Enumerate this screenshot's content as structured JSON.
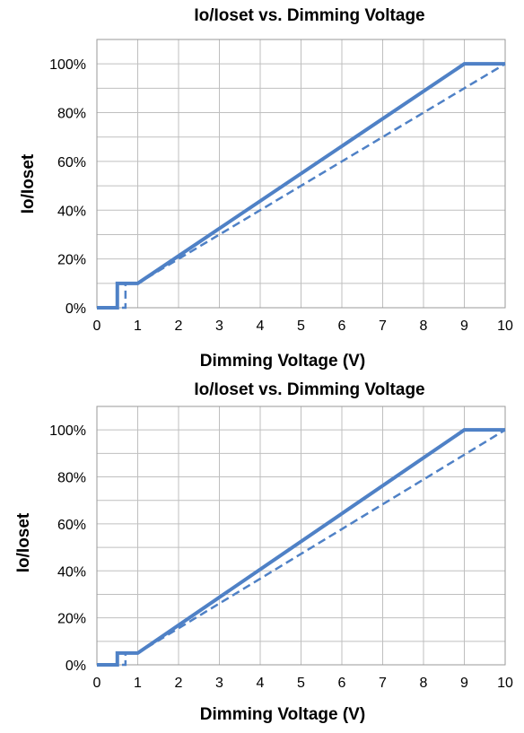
{
  "chart_data": [
    {
      "type": "line",
      "title": "Io/Ioset vs. Dimming Voltage",
      "xlabel": "Dimming Voltage (V)",
      "ylabel": "Io/Ioset",
      "xlim": [
        0,
        10
      ],
      "ylim": [
        0,
        110
      ],
      "x_ticks": [
        "0",
        "1",
        "2",
        "3",
        "4",
        "5",
        "6",
        "7",
        "8",
        "9",
        "10"
      ],
      "y_ticks": [
        "0%",
        "20%",
        "40%",
        "60%",
        "80%",
        "100%"
      ],
      "y_tick_values": [
        0,
        20,
        40,
        60,
        80,
        100
      ],
      "grid": true,
      "series": [
        {
          "style": "solid",
          "color": "#4f81c6",
          "x": [
            0,
            0.5,
            0.5,
            1.0,
            9.0,
            10.0
          ],
          "y": [
            0,
            0,
            10,
            10,
            100,
            100
          ]
        },
        {
          "style": "dashed",
          "color": "#4f81c6",
          "x": [
            0,
            0.7,
            0.7,
            1.0,
            10.0
          ],
          "y": [
            0,
            0,
            10,
            10,
            100
          ]
        }
      ]
    },
    {
      "type": "line",
      "title": "Io/Ioset vs. Dimming Voltage",
      "xlabel": "Dimming Voltage (V)",
      "ylabel": "Io/Ioset",
      "xlim": [
        0,
        10
      ],
      "ylim": [
        0,
        110
      ],
      "x_ticks": [
        "0",
        "1",
        "2",
        "3",
        "4",
        "5",
        "6",
        "7",
        "8",
        "9",
        "10"
      ],
      "y_ticks": [
        "0%",
        "20%",
        "40%",
        "60%",
        "80%",
        "100%"
      ],
      "y_tick_values": [
        0,
        20,
        40,
        60,
        80,
        100
      ],
      "grid": true,
      "series": [
        {
          "style": "solid",
          "color": "#4f81c6",
          "x": [
            0,
            0.5,
            0.5,
            1.0,
            9.0,
            10.0
          ],
          "y": [
            0,
            0,
            5,
            5,
            100,
            100
          ]
        },
        {
          "style": "dashed",
          "color": "#4f81c6",
          "x": [
            0,
            0.7,
            0.7,
            1.0,
            10.0
          ],
          "y": [
            0,
            0,
            5,
            5,
            100
          ]
        }
      ]
    }
  ]
}
